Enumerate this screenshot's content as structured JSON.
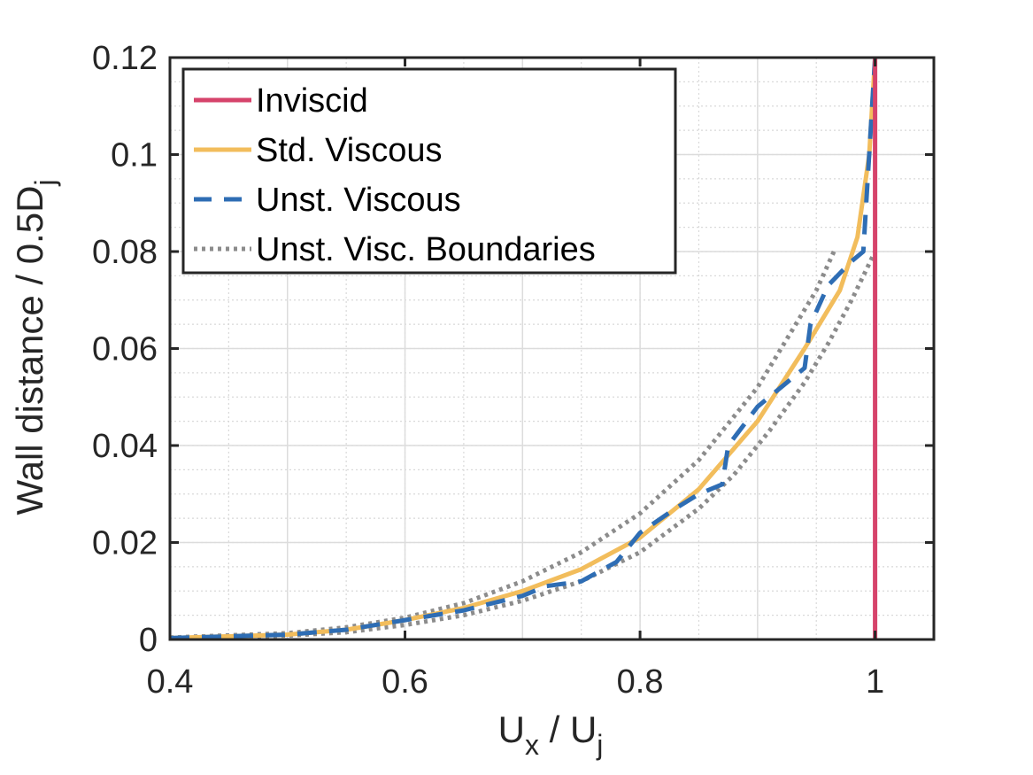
{
  "chart_data": {
    "type": "line",
    "xlabel": {
      "main": "U",
      "sub1": "x",
      "mid": " / U",
      "sub2": "j"
    },
    "ylabel": {
      "main": "Wall distance / 0.5D",
      "sub": "j"
    },
    "xlim": [
      0.4,
      1.05
    ],
    "ylim": [
      0,
      0.12
    ],
    "xticks": [
      0.4,
      0.6,
      0.8,
      1.0
    ],
    "xtick_labels": [
      "0.4",
      "0.6",
      "0.8",
      "1"
    ],
    "yticks": [
      0,
      0.02,
      0.04,
      0.06,
      0.08,
      0.1,
      0.12
    ],
    "ytick_labels": [
      "0",
      "0.02",
      "0.04",
      "0.06",
      "0.08",
      "0.1",
      "0.12"
    ],
    "grid": true,
    "minor_grid": true,
    "legend_position": "top-left",
    "series": [
      {
        "name": "Inviscid",
        "color": "#d6436b",
        "style": "solid",
        "x": [
          1.0,
          1.0
        ],
        "y": [
          0.0,
          0.12
        ]
      },
      {
        "name": "Std. Viscous",
        "color": "#f2bd5c",
        "style": "solid",
        "x": [
          0.4,
          0.5,
          0.55,
          0.6,
          0.65,
          0.7,
          0.75,
          0.8,
          0.85,
          0.9,
          0.94,
          0.97,
          0.985,
          0.995,
          1.0
        ],
        "y": [
          0.0003,
          0.001,
          0.002,
          0.004,
          0.0065,
          0.01,
          0.0145,
          0.021,
          0.031,
          0.045,
          0.06,
          0.072,
          0.083,
          0.1,
          0.12
        ]
      },
      {
        "name": "Unst. Viscous",
        "color": "#2e6db4",
        "style": "dashed",
        "x": [
          0.4,
          0.5,
          0.55,
          0.6,
          0.65,
          0.7,
          0.72,
          0.75,
          0.78,
          0.8,
          0.83,
          0.85,
          0.87,
          0.875,
          0.9,
          0.93,
          0.94,
          0.945,
          0.96,
          0.98,
          0.99,
          1.0
        ],
        "y": [
          0.0003,
          0.001,
          0.002,
          0.004,
          0.006,
          0.009,
          0.011,
          0.012,
          0.016,
          0.022,
          0.027,
          0.03,
          0.032,
          0.04,
          0.048,
          0.054,
          0.056,
          0.065,
          0.073,
          0.078,
          0.08,
          0.12
        ]
      },
      {
        "name": "Unst. Visc. Boundaries",
        "color": "#8c8c8c",
        "style": "dotted",
        "x": [
          0.4,
          0.5,
          0.55,
          0.6,
          0.65,
          0.7,
          0.75,
          0.8,
          0.85,
          0.9,
          0.93,
          0.95,
          0.965
        ],
        "y": [
          0.0004,
          0.0013,
          0.0025,
          0.0045,
          0.0075,
          0.012,
          0.018,
          0.026,
          0.037,
          0.052,
          0.064,
          0.072,
          0.08
        ],
        "show_in_legend": true
      },
      {
        "name": "Unst. Visc. Boundaries (lower)",
        "color": "#8c8c8c",
        "style": "dotted",
        "x": [
          0.4,
          0.5,
          0.55,
          0.6,
          0.65,
          0.7,
          0.75,
          0.8,
          0.85,
          0.88,
          0.91,
          0.94,
          0.96,
          0.98,
          1.0
        ],
        "y": [
          0.0002,
          0.0008,
          0.0015,
          0.003,
          0.005,
          0.008,
          0.012,
          0.018,
          0.027,
          0.034,
          0.043,
          0.053,
          0.061,
          0.07,
          0.08
        ],
        "show_in_legend": false
      }
    ]
  }
}
